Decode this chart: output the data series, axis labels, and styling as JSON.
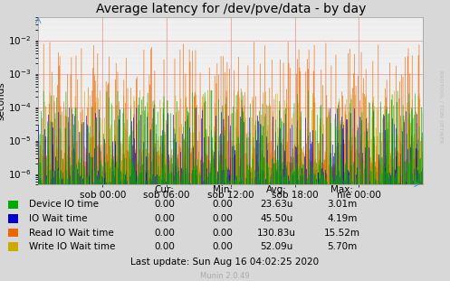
{
  "title": "Average latency for /dev/pve/data - by day",
  "ylabel": "seconds",
  "right_label": "RRDTOOL / TOBI OETIKER",
  "xtick_labels": [
    "sob 00:00",
    "sob 06:00",
    "sob 12:00",
    "sob 18:00",
    "nie 00:00"
  ],
  "xtick_positions": [
    0.167,
    0.333,
    0.5,
    0.667,
    0.833
  ],
  "bg_color": "#d8d8d8",
  "plot_bg_color": "#f0f0f0",
  "grid_color_major": "#ee9999",
  "grid_color_minor": "#cccccc",
  "series": [
    {
      "name": "Device IO time",
      "color": "#00aa00",
      "zorder": 4
    },
    {
      "name": "IO Wait time",
      "color": "#0000cc",
      "zorder": 3
    },
    {
      "name": "Read IO Wait time",
      "color": "#ee6600",
      "zorder": 2
    },
    {
      "name": "Write IO Wait time",
      "color": "#ccaa00",
      "zorder": 1
    }
  ],
  "legend_entries": [
    {
      "label": "Device IO time",
      "color": "#00aa00"
    },
    {
      "label": "IO Wait time",
      "color": "#0000cc"
    },
    {
      "label": "Read IO Wait time",
      "color": "#ee6600"
    },
    {
      "label": "Write IO Wait time",
      "color": "#ccaa00"
    }
  ],
  "stats": [
    {
      "cur": "0.00",
      "min": "0.00",
      "avg": "23.63u",
      "max": "3.01m"
    },
    {
      "cur": "0.00",
      "min": "0.00",
      "avg": "45.50u",
      "max": "4.19m"
    },
    {
      "cur": "0.00",
      "min": "0.00",
      "avg": "130.83u",
      "max": "15.52m"
    },
    {
      "cur": "0.00",
      "min": "0.00",
      "avg": "52.09u",
      "max": "5.70m"
    }
  ],
  "last_update": "Last update: Sun Aug 16 04:02:25 2020",
  "munin_version": "Munin 2.0.49",
  "title_fontsize": 10,
  "axis_fontsize": 7.5,
  "legend_fontsize": 7.5,
  "tick_label_fontsize": 7.5
}
